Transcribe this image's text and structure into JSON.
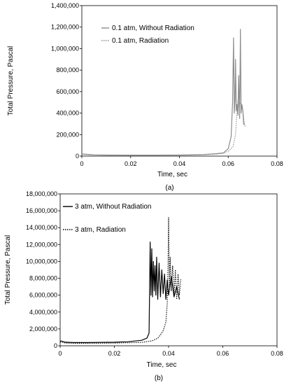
{
  "chart_data": [
    {
      "type": "line",
      "caption": "(a)",
      "xlabel": "Time, sec",
      "ylabel": "Total Pressure, Pascal",
      "xlim": [
        0,
        0.08
      ],
      "ylim": [
        0,
        1400000
      ],
      "x_ticks": [
        "0",
        "0.02",
        "0.04",
        "0.06",
        "0.08"
      ],
      "y_ticks": [
        "0",
        "200,000",
        "400,000",
        "600,000",
        "800,000",
        "1,000,000",
        "1,200,000",
        "1,400,000"
      ],
      "x_tick_values": [
        0,
        0.02,
        0.04,
        0.06,
        0.08
      ],
      "y_tick_values": [
        0,
        200000,
        400000,
        600000,
        800000,
        1000000,
        1200000,
        1400000
      ],
      "grid": false,
      "legend": "top-right",
      "series": [
        {
          "name": "0.1 atm, Without Radiation",
          "style": "solid",
          "color": "#8c8c8c",
          "x": [
            0,
            0.005,
            0.01,
            0.02,
            0.03,
            0.04,
            0.05,
            0.055,
            0.058,
            0.06,
            0.0612,
            0.0618,
            0.0622,
            0.0625,
            0.0628,
            0.063,
            0.0633,
            0.0636,
            0.064,
            0.0643,
            0.0647,
            0.065,
            0.0653,
            0.0656,
            0.066,
            0.0663,
            0.0666
          ],
          "y": [
            20000,
            12000,
            10000,
            9000,
            9000,
            10000,
            15000,
            22000,
            30000,
            70000,
            180000,
            500000,
            1100000,
            400000,
            520000,
            900000,
            420000,
            480000,
            380000,
            750000,
            350000,
            1180000,
            400000,
            480000,
            420000,
            300000,
            290000
          ]
        },
        {
          "name": "0.1 atm, Radiation",
          "style": "dotted",
          "color": "#8c8c8c",
          "x": [
            0,
            0.005,
            0.01,
            0.02,
            0.03,
            0.04,
            0.05,
            0.055,
            0.058,
            0.06,
            0.062,
            0.063,
            0.0635,
            0.064,
            0.0645,
            0.065,
            0.0655,
            0.066,
            0.0665,
            0.067
          ],
          "y": [
            15000,
            10000,
            8000,
            7000,
            7000,
            8000,
            12000,
            18000,
            26000,
            45000,
            90000,
            200000,
            380000,
            520000,
            460000,
            500000,
            480000,
            430000,
            320000,
            270000
          ]
        }
      ]
    },
    {
      "type": "line",
      "caption": "(b)",
      "xlabel": "Time, sec",
      "ylabel": "Total Pressure, Pascal",
      "xlim": [
        0,
        0.08
      ],
      "ylim": [
        0,
        18000000
      ],
      "x_ticks": [
        "0",
        "0.02",
        "0.04",
        "0.06",
        "0.08"
      ],
      "y_ticks": [
        "0",
        "2,000,000",
        "4,000,000",
        "6,000,000",
        "8,000,000",
        "10,000,000",
        "12,000,000",
        "14,000,000",
        "16,000,000",
        "18,000,000"
      ],
      "x_tick_values": [
        0,
        0.02,
        0.04,
        0.06,
        0.08
      ],
      "y_tick_values": [
        0,
        2000000,
        4000000,
        6000000,
        8000000,
        10000000,
        12000000,
        14000000,
        16000000,
        18000000
      ],
      "grid": false,
      "legend": "top-left",
      "series": [
        {
          "name": "3 atm, Without Radiation",
          "style": "solid",
          "color": "#000000",
          "x": [
            0,
            0.002,
            0.005,
            0.01,
            0.02,
            0.025,
            0.03,
            0.032,
            0.0328,
            0.0332,
            0.0335,
            0.0338,
            0.0341,
            0.0344,
            0.0347,
            0.035,
            0.0353,
            0.0356,
            0.036,
            0.0365,
            0.037,
            0.0375,
            0.038,
            0.0385,
            0.039,
            0.0395,
            0.04,
            0.041,
            0.042,
            0.043,
            0.044
          ],
          "y": [
            600000,
            420000,
            380000,
            380000,
            420000,
            480000,
            650000,
            900000,
            1500000,
            12300000,
            6000000,
            11500000,
            5800000,
            10000000,
            6500000,
            9500000,
            6000000,
            10500000,
            5500000,
            9800000,
            5800000,
            9000000,
            6200000,
            8500000,
            5500000,
            7800000,
            6000000,
            8200000,
            5800000,
            7000000,
            5500000
          ]
        },
        {
          "name": "3 atm, Radiation",
          "style": "dotted",
          "color": "#000000",
          "x": [
            0,
            0.002,
            0.005,
            0.01,
            0.02,
            0.03,
            0.034,
            0.036,
            0.037,
            0.038,
            0.039,
            0.0395,
            0.0398,
            0.04,
            0.0403,
            0.0406,
            0.041,
            0.0415,
            0.042,
            0.0425,
            0.043,
            0.0435,
            0.044,
            0.0445
          ],
          "y": [
            450000,
            330000,
            300000,
            300000,
            320000,
            400000,
            600000,
            900000,
            1300000,
            1800000,
            2800000,
            5000000,
            9500000,
            15200000,
            7000000,
            10500000,
            6500000,
            9500000,
            6000000,
            9000000,
            5500000,
            8500000,
            6000000,
            8000000
          ]
        }
      ]
    }
  ]
}
